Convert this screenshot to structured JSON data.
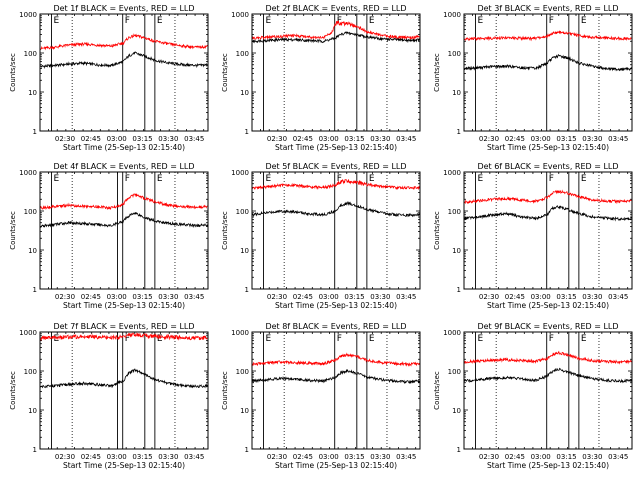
{
  "time_axis": {
    "xlabel": "Start Time (25-Sep-13 02:15:40)",
    "tick_labels": [
      "02:30",
      "02:45",
      "03:00",
      "03:15",
      "03:30",
      "03:45"
    ],
    "tick_values": [
      870,
      1770,
      2670,
      3570,
      4470,
      5370
    ],
    "xlim": [
      0,
      5850
    ]
  },
  "count_axis": {
    "ylabel": "Counts/sec",
    "scale": "log",
    "ylim": [
      1,
      1000
    ],
    "tick_labels": [
      "1",
      "10",
      "100",
      "1000"
    ],
    "tick_values": [
      1,
      10,
      100,
      1000
    ]
  },
  "colors": {
    "events": "#000000",
    "lld": "#ff0000",
    "axes": "#000000"
  },
  "chart_data": [
    {
      "type": "line",
      "title": "Det 1f BLACK = Events, RED = LLD",
      "markers": [
        {
          "t": 2880,
          "label": "F"
        },
        {
          "t": 4000,
          "label": "E"
        },
        {
          "t": 400,
          "label": "E"
        }
      ],
      "solid_lines": [
        3650
      ],
      "dotted_lines": [
        1120,
        4700
      ],
      "series": [
        {
          "color": "black",
          "x": [
            0,
            500,
            1000,
            1500,
            2000,
            2500,
            2900,
            3100,
            3300,
            3600,
            4000,
            4500,
            5000,
            5500,
            5850
          ],
          "y": [
            45,
            48,
            52,
            55,
            50,
            48,
            60,
            85,
            100,
            85,
            65,
            55,
            50,
            48,
            50
          ]
        },
        {
          "color": "red",
          "x": [
            0,
            500,
            1000,
            1500,
            2000,
            2500,
            2900,
            3100,
            3300,
            3600,
            4000,
            4500,
            5000,
            5500,
            5850
          ],
          "y": [
            130,
            140,
            160,
            170,
            160,
            150,
            180,
            250,
            280,
            250,
            200,
            170,
            150,
            140,
            150
          ]
        }
      ]
    },
    {
      "type": "line",
      "title": "Det 2f BLACK = Events, RED = LLD",
      "markers": [
        {
          "t": 2880,
          "label": "F"
        },
        {
          "t": 4000,
          "label": "E"
        },
        {
          "t": 400,
          "label": "E"
        }
      ],
      "solid_lines": [
        3650
      ],
      "dotted_lines": [
        1120,
        4700
      ],
      "series": [
        {
          "color": "black",
          "x": [
            0,
            500,
            1000,
            1500,
            2000,
            2500,
            2900,
            3100,
            3300,
            3600,
            4000,
            4500,
            5000,
            5500,
            5850
          ],
          "y": [
            200,
            210,
            220,
            220,
            210,
            200,
            240,
            300,
            330,
            300,
            260,
            230,
            220,
            210,
            220
          ]
        },
        {
          "color": "red",
          "x": [
            0,
            500,
            1000,
            1500,
            2000,
            2500,
            2800,
            2950,
            3100,
            3300,
            3600,
            4000,
            4500,
            5000,
            5500,
            5850
          ],
          "y": [
            240,
            250,
            270,
            280,
            260,
            250,
            350,
            600,
            550,
            600,
            500,
            350,
            280,
            260,
            250,
            260
          ]
        }
      ]
    },
    {
      "type": "line",
      "title": "Det 3f BLACK = Events, RED = LLD",
      "markers": [
        {
          "t": 2880,
          "label": "F"
        },
        {
          "t": 4000,
          "label": "E"
        },
        {
          "t": 400,
          "label": "E"
        }
      ],
      "solid_lines": [
        3650
      ],
      "dotted_lines": [
        1120,
        4700
      ],
      "series": [
        {
          "color": "black",
          "x": [
            0,
            500,
            1000,
            1500,
            2000,
            2500,
            2900,
            3100,
            3300,
            3600,
            4000,
            4500,
            5000,
            5500,
            5850
          ],
          "y": [
            40,
            42,
            45,
            46,
            42,
            40,
            55,
            75,
            85,
            75,
            55,
            45,
            40,
            38,
            40
          ]
        },
        {
          "color": "red",
          "x": [
            0,
            500,
            1000,
            1500,
            2000,
            2500,
            2900,
            3100,
            3300,
            3600,
            4000,
            4500,
            5000,
            5500,
            5850
          ],
          "y": [
            230,
            235,
            240,
            245,
            240,
            235,
            270,
            320,
            340,
            320,
            280,
            250,
            240,
            235,
            240
          ]
        }
      ]
    },
    {
      "type": "line",
      "title": "Det 4f BLACK = Events, RED = LLD",
      "markers": [
        {
          "t": 2880,
          "label": "F"
        },
        {
          "t": 4000,
          "label": "E"
        },
        {
          "t": 400,
          "label": "E"
        }
      ],
      "solid_lines": [
        2700,
        3650
      ],
      "dotted_lines": [
        1120,
        4700
      ],
      "series": [
        {
          "color": "black",
          "x": [
            0,
            500,
            1000,
            1500,
            2000,
            2500,
            2900,
            3100,
            3300,
            3600,
            4000,
            4500,
            5000,
            5500,
            5850
          ],
          "y": [
            40,
            45,
            50,
            48,
            45,
            42,
            55,
            75,
            90,
            70,
            55,
            48,
            45,
            42,
            45
          ]
        },
        {
          "color": "red",
          "x": [
            0,
            500,
            1000,
            1500,
            2000,
            2500,
            2900,
            3100,
            3300,
            3600,
            4000,
            4500,
            5000,
            5500,
            5850
          ],
          "y": [
            120,
            130,
            140,
            135,
            130,
            120,
            150,
            220,
            260,
            220,
            170,
            140,
            130,
            125,
            130
          ]
        }
      ]
    },
    {
      "type": "line",
      "title": "Det 5f BLACK = Events, RED = LLD",
      "markers": [
        {
          "t": 2880,
          "label": "F"
        },
        {
          "t": 4000,
          "label": "E"
        },
        {
          "t": 400,
          "label": "E"
        }
      ],
      "solid_lines": [
        3650
      ],
      "dotted_lines": [
        1120,
        4700
      ],
      "series": [
        {
          "color": "black",
          "x": [
            0,
            500,
            1000,
            1500,
            2000,
            2500,
            2900,
            3100,
            3300,
            3600,
            4000,
            4500,
            5000,
            5500,
            5850
          ],
          "y": [
            80,
            90,
            100,
            95,
            85,
            80,
            100,
            140,
            160,
            140,
            110,
            90,
            80,
            78,
            80
          ]
        },
        {
          "color": "red",
          "x": [
            0,
            500,
            1000,
            1500,
            2000,
            2500,
            2900,
            3100,
            3300,
            3600,
            4000,
            4500,
            5000,
            5500,
            5850
          ],
          "y": [
            380,
            420,
            460,
            450,
            420,
            400,
            460,
            560,
            600,
            560,
            480,
            420,
            400,
            390,
            400
          ]
        }
      ]
    },
    {
      "type": "line",
      "title": "Det 6f BLACK = Events, RED = LLD",
      "markers": [
        {
          "t": 2880,
          "label": "F"
        },
        {
          "t": 4000,
          "label": "E"
        },
        {
          "t": 400,
          "label": "E"
        }
      ],
      "solid_lines": [
        3650
      ],
      "dotted_lines": [
        1120,
        4700
      ],
      "series": [
        {
          "color": "black",
          "x": [
            0,
            500,
            1000,
            1500,
            2000,
            2500,
            2900,
            3100,
            3300,
            3600,
            4000,
            4500,
            5000,
            5500,
            5850
          ],
          "y": [
            65,
            70,
            80,
            85,
            70,
            65,
            80,
            120,
            130,
            110,
            85,
            70,
            65,
            62,
            65
          ]
        },
        {
          "color": "red",
          "x": [
            0,
            500,
            1000,
            1500,
            2000,
            2500,
            2900,
            3100,
            3300,
            3600,
            4000,
            4500,
            5000,
            5500,
            5850
          ],
          "y": [
            170,
            180,
            200,
            210,
            190,
            180,
            220,
            300,
            320,
            290,
            230,
            190,
            180,
            175,
            180
          ]
        }
      ]
    },
    {
      "type": "line",
      "title": "Det 7f BLACK = Events, RED = LLD",
      "markers": [
        {
          "t": 2880,
          "label": "F"
        },
        {
          "t": 4000,
          "label": "E"
        },
        {
          "t": 400,
          "label": "E"
        }
      ],
      "solid_lines": [
        2700,
        3650
      ],
      "dotted_lines": [
        1120,
        4700
      ],
      "series": [
        {
          "color": "black",
          "x": [
            0,
            500,
            1000,
            1500,
            2000,
            2500,
            2900,
            3100,
            3300,
            3600,
            4000,
            4500,
            5000,
            5500,
            5850
          ],
          "y": [
            40,
            42,
            45,
            48,
            45,
            42,
            55,
            90,
            105,
            85,
            60,
            48,
            42,
            40,
            42
          ]
        },
        {
          "color": "red",
          "x": [
            0,
            500,
            1000,
            1500,
            2000,
            2500,
            2900,
            3100,
            3300,
            3600,
            4000,
            4500,
            5000,
            5500,
            5850
          ],
          "y": [
            700,
            720,
            750,
            780,
            750,
            720,
            760,
            820,
            850,
            820,
            780,
            750,
            720,
            700,
            720
          ]
        }
      ]
    },
    {
      "type": "line",
      "title": "Det 8f BLACK = Events, RED = LLD",
      "markers": [
        {
          "t": 2880,
          "label": "F"
        },
        {
          "t": 4000,
          "label": "E"
        },
        {
          "t": 400,
          "label": "E"
        }
      ],
      "solid_lines": [
        3650
      ],
      "dotted_lines": [
        1120,
        4700
      ],
      "series": [
        {
          "color": "black",
          "x": [
            0,
            500,
            1000,
            1500,
            2000,
            2500,
            2900,
            3100,
            3300,
            3600,
            4000,
            4500,
            5000,
            5500,
            5850
          ],
          "y": [
            55,
            60,
            65,
            62,
            58,
            55,
            70,
            90,
            100,
            90,
            70,
            60,
            55,
            52,
            55
          ]
        },
        {
          "color": "red",
          "x": [
            0,
            500,
            1000,
            1500,
            2000,
            2500,
            2900,
            3100,
            3300,
            3600,
            4000,
            4500,
            5000,
            5500,
            5850
          ],
          "y": [
            150,
            160,
            170,
            165,
            160,
            155,
            190,
            240,
            260,
            240,
            190,
            165,
            155,
            150,
            155
          ]
        }
      ]
    },
    {
      "type": "line",
      "title": "Det 9f BLACK = Events, RED = LLD",
      "markers": [
        {
          "t": 2880,
          "label": "F"
        },
        {
          "t": 4000,
          "label": "E"
        },
        {
          "t": 400,
          "label": "E"
        }
      ],
      "solid_lines": [
        3650
      ],
      "dotted_lines": [
        1120,
        4700
      ],
      "series": [
        {
          "color": "black",
          "x": [
            0,
            500,
            1000,
            1500,
            2000,
            2500,
            2900,
            3100,
            3300,
            3600,
            4000,
            4500,
            5000,
            5500,
            5850
          ],
          "y": [
            55,
            60,
            65,
            68,
            62,
            58,
            75,
            100,
            110,
            95,
            75,
            62,
            58,
            55,
            57
          ]
        },
        {
          "color": "red",
          "x": [
            0,
            500,
            1000,
            1500,
            2000,
            2500,
            2900,
            3100,
            3300,
            3600,
            4000,
            4500,
            5000,
            5500,
            5850
          ],
          "y": [
            170,
            180,
            190,
            195,
            185,
            180,
            210,
            270,
            290,
            260,
            210,
            185,
            175,
            170,
            175
          ]
        }
      ]
    }
  ]
}
